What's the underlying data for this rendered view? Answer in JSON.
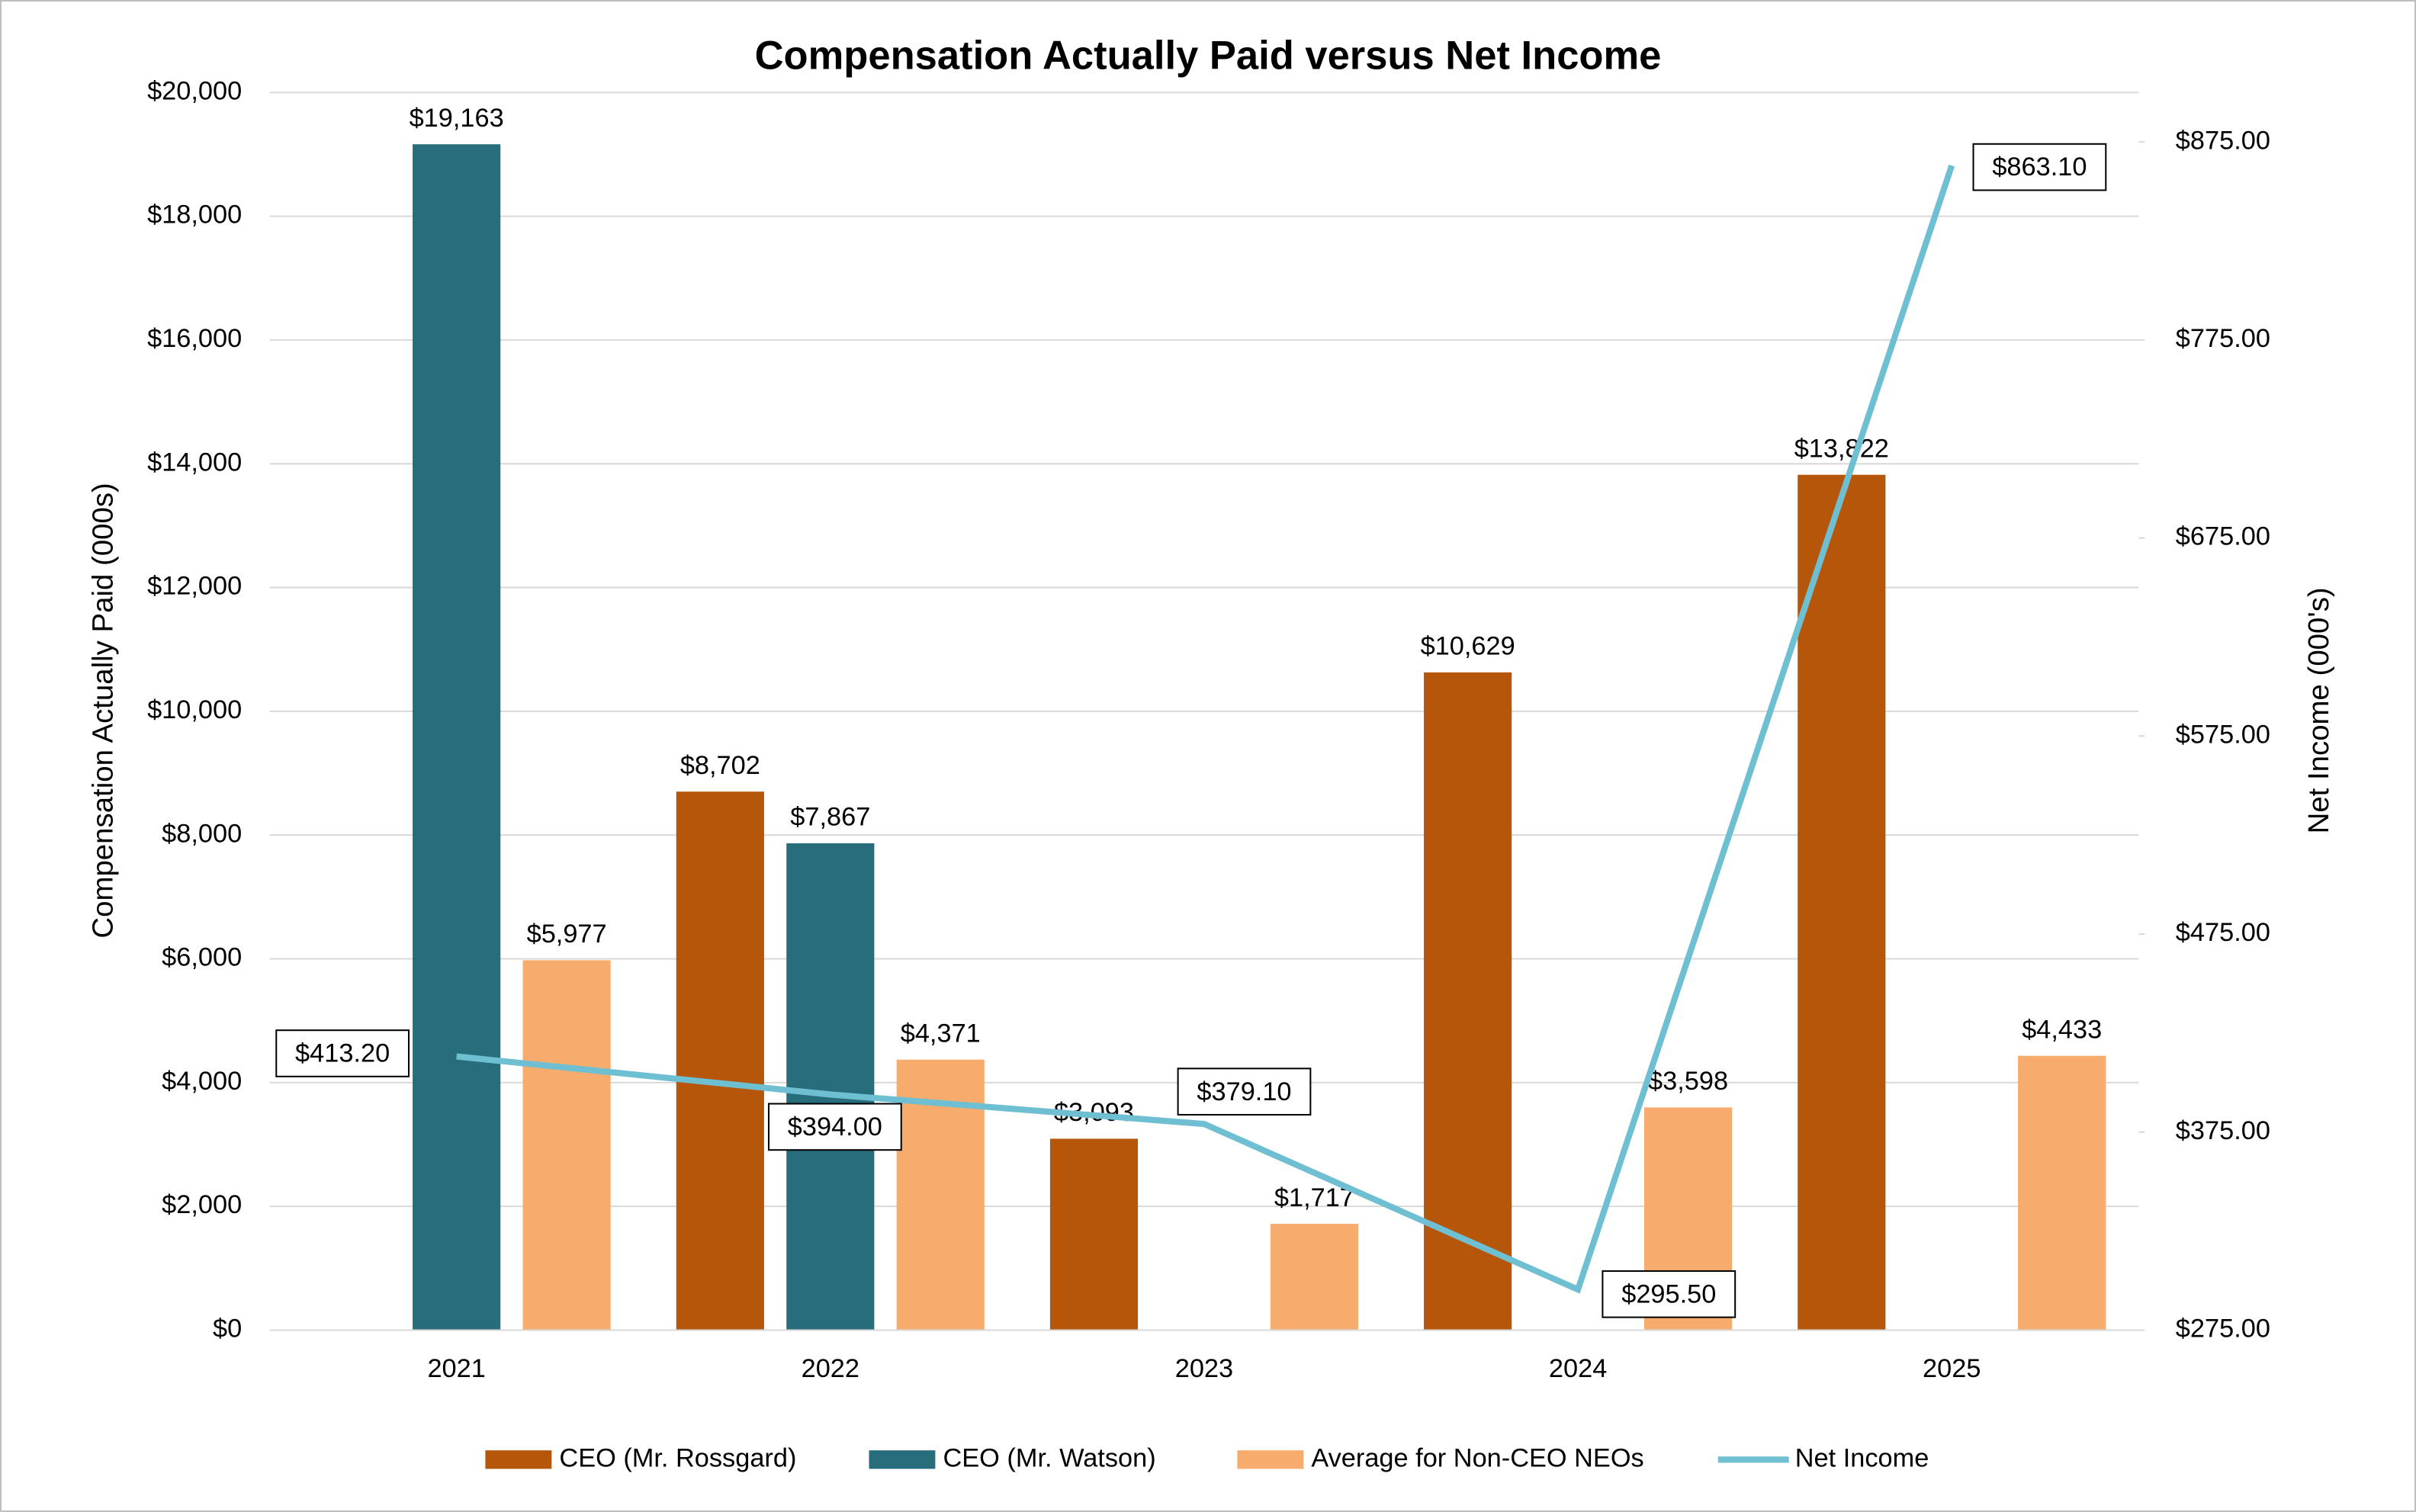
{
  "chart_data": {
    "type": "bar",
    "title": "Compensation Actually Paid versus Net Income",
    "y_label": "Compensation Actually Paid (000s)",
    "y2_label": "Net Income (000's)",
    "categories": [
      "2021",
      "2022",
      "2023",
      "2024",
      "2025"
    ],
    "ylim": [
      0,
      20000
    ],
    "yticks": [
      {
        "value": 0,
        "label": "$0"
      },
      {
        "value": 2000,
        "label": "$2,000"
      },
      {
        "value": 4000,
        "label": "$4,000"
      },
      {
        "value": 6000,
        "label": "$6,000"
      },
      {
        "value": 8000,
        "label": "$8,000"
      },
      {
        "value": 10000,
        "label": "$10,000"
      },
      {
        "value": 12000,
        "label": "$12,000"
      },
      {
        "value": 14000,
        "label": "$14,000"
      },
      {
        "value": 16000,
        "label": "$16,000"
      },
      {
        "value": 18000,
        "label": "$18,000"
      },
      {
        "value": 20000,
        "label": "$20,000"
      }
    ],
    "y2lim": [
      275,
      900
    ],
    "y2ticks": [
      {
        "value": 275,
        "label": "$275.00"
      },
      {
        "value": 375,
        "label": "$375.00"
      },
      {
        "value": 475,
        "label": "$475.00"
      },
      {
        "value": 575,
        "label": "$575.00"
      },
      {
        "value": 675,
        "label": "$675.00"
      },
      {
        "value": 775,
        "label": "$775.00"
      },
      {
        "value": 875,
        "label": "$875.00"
      }
    ],
    "grid": true,
    "legend": "bottom",
    "series": [
      {
        "name": "CEO (Mr. Rossgard)",
        "color": "#b5560a",
        "type": "bar",
        "values": [
          null,
          8702,
          3093,
          10629,
          13822
        ],
        "value_labels": [
          null,
          "$8,702",
          "$3,093",
          "$10,629",
          "$13,822"
        ]
      },
      {
        "name": "CEO (Mr. Watson)",
        "color": "#286d7c",
        "type": "bar",
        "values": [
          19163,
          7867,
          null,
          null,
          null
        ],
        "value_labels": [
          "$19,163",
          "$7,867",
          null,
          null,
          null
        ]
      },
      {
        "name": "Average for Non-CEO NEOs",
        "color": "#f7ab6c",
        "type": "bar",
        "values": [
          5977,
          4371,
          1717,
          3598,
          4433
        ],
        "value_labels": [
          "$5,977",
          "$4,371",
          "$1,717",
          "$3,598",
          "$4,433"
        ]
      },
      {
        "name": "Net Income",
        "color": "#6fbfd2",
        "type": "line",
        "axis": "y2",
        "values": [
          413.2,
          394.0,
          379.1,
          295.5,
          863.1
        ],
        "value_labels": [
          "$413.20",
          "$394.00",
          "$379.10",
          "$295.50",
          "$863.10"
        ]
      }
    ]
  }
}
